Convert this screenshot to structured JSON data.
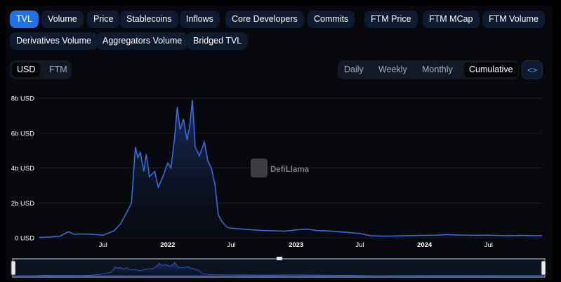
{
  "tabs": [
    {
      "label": "TVL",
      "active": true
    },
    {
      "label": "Volume"
    },
    {
      "label": "Price"
    },
    {
      "label": "Stablecoins"
    },
    {
      "label": "Inflows"
    },
    {
      "label": "Core Developers"
    },
    {
      "label": "Commits"
    },
    {
      "label": "FTM Price"
    },
    {
      "label": "FTM MCap"
    },
    {
      "label": "FTM Volume"
    },
    {
      "label": "Derivatives Volume"
    },
    {
      "label": "Aggregators Volume"
    },
    {
      "label": "Bridged TVL"
    }
  ],
  "denomination": {
    "usd": "USD",
    "ftm": "FTM",
    "selected": "USD"
  },
  "period": {
    "daily": "Daily",
    "weekly": "Weekly",
    "monthly": "Monthly",
    "cumulative": "Cumulative",
    "selected": "Cumulative"
  },
  "embed_label": "<>",
  "watermark": "DefiLlama",
  "colors": {
    "line": "#3b6fe8",
    "active_tab": "#2172e5"
  },
  "chart_data": {
    "type": "area",
    "y_unit": "USD",
    "ylim": [
      0,
      8000000000
    ],
    "y_ticks": [
      "0 USD",
      "2b USD",
      "4b USD",
      "6b USD",
      "8b USD"
    ],
    "x_ticks": [
      "Jul",
      "2022",
      "Jul",
      "2023",
      "Jul",
      "2024",
      "Jul"
    ],
    "xlim": [
      "2021-01-01",
      "2024-11-30"
    ],
    "grid": true,
    "series": [
      {
        "values": [
          [
            "2021-01-01",
            0.02
          ],
          [
            "2021-02-01",
            0.05
          ],
          [
            "2021-03-01",
            0.1
          ],
          [
            "2021-03-25",
            0.35
          ],
          [
            "2021-04-10",
            0.2
          ],
          [
            "2021-05-01",
            0.22
          ],
          [
            "2021-06-01",
            0.2
          ],
          [
            "2021-07-01",
            0.15
          ],
          [
            "2021-08-01",
            0.4
          ],
          [
            "2021-08-20",
            0.8
          ],
          [
            "2021-09-05",
            1.4
          ],
          [
            "2021-09-20",
            2.0
          ],
          [
            "2021-10-01",
            5.2
          ],
          [
            "2021-10-08",
            4.6
          ],
          [
            "2021-10-15",
            4.9
          ],
          [
            "2021-10-25",
            3.8
          ],
          [
            "2021-11-01",
            4.8
          ],
          [
            "2021-11-10",
            3.5
          ],
          [
            "2021-11-25",
            3.8
          ],
          [
            "2021-12-05",
            2.9
          ],
          [
            "2021-12-20",
            3.6
          ],
          [
            "2022-01-01",
            4.3
          ],
          [
            "2022-01-10",
            4.0
          ],
          [
            "2022-01-20",
            5.6
          ],
          [
            "2022-01-28",
            7.5
          ],
          [
            "2022-02-05",
            6.2
          ],
          [
            "2022-02-15",
            6.8
          ],
          [
            "2022-02-25",
            5.6
          ],
          [
            "2022-03-05",
            6.5
          ],
          [
            "2022-03-12",
            7.9
          ],
          [
            "2022-03-20",
            5.2
          ],
          [
            "2022-04-01",
            4.7
          ],
          [
            "2022-04-15",
            5.5
          ],
          [
            "2022-04-25",
            4.4
          ],
          [
            "2022-05-05",
            4.0
          ],
          [
            "2022-05-15",
            3.1
          ],
          [
            "2022-05-25",
            1.3
          ],
          [
            "2022-06-05",
            0.9
          ],
          [
            "2022-06-20",
            0.6
          ],
          [
            "2022-07-01",
            0.55
          ],
          [
            "2022-08-01",
            0.5
          ],
          [
            "2022-09-01",
            0.45
          ],
          [
            "2022-10-01",
            0.42
          ],
          [
            "2022-11-01",
            0.4
          ],
          [
            "2022-12-01",
            0.38
          ],
          [
            "2023-01-01",
            0.45
          ],
          [
            "2023-02-01",
            0.5
          ],
          [
            "2023-03-01",
            0.42
          ],
          [
            "2023-04-01",
            0.4
          ],
          [
            "2023-05-01",
            0.35
          ],
          [
            "2023-06-01",
            0.3
          ],
          [
            "2023-07-01",
            0.25
          ],
          [
            "2023-08-01",
            0.12
          ],
          [
            "2023-09-01",
            0.1
          ],
          [
            "2023-10-01",
            0.1
          ],
          [
            "2023-11-01",
            0.12
          ],
          [
            "2023-12-01",
            0.13
          ],
          [
            "2024-01-01",
            0.14
          ],
          [
            "2024-02-01",
            0.15
          ],
          [
            "2024-03-01",
            0.18
          ],
          [
            "2024-04-01",
            0.16
          ],
          [
            "2024-05-01",
            0.15
          ],
          [
            "2024-06-01",
            0.14
          ],
          [
            "2024-07-01",
            0.15
          ],
          [
            "2024-08-01",
            0.13
          ],
          [
            "2024-09-01",
            0.12
          ],
          [
            "2024-10-01",
            0.14
          ],
          [
            "2024-11-01",
            0.12
          ],
          [
            "2024-11-30",
            0.12
          ]
        ],
        "unit_multiplier": 1000000000
      }
    ]
  }
}
